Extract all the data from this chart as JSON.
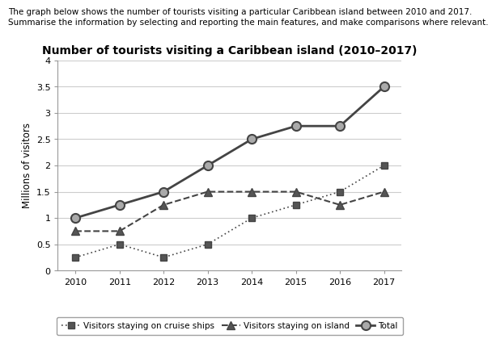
{
  "title": "Number of tourists visiting a Caribbean island (2010–2017)",
  "header_line1": "The graph below shows the number of tourists visiting a particular Caribbean island between 2010 and 2017.",
  "header_line2": "Summarise the information by selecting and reporting the main features, and make comparisons where relevant.",
  "ylabel": "Millions of visitors",
  "years": [
    2010,
    2011,
    2012,
    2013,
    2014,
    2015,
    2016,
    2017
  ],
  "cruise_ships": [
    0.25,
    0.5,
    0.25,
    0.5,
    1.0,
    1.25,
    1.5,
    2.0
  ],
  "on_island": [
    0.75,
    0.75,
    1.25,
    1.5,
    1.5,
    1.5,
    1.25,
    1.5
  ],
  "total": [
    1.0,
    1.25,
    1.5,
    2.0,
    2.5,
    2.75,
    2.75,
    3.5
  ],
  "ylim": [
    0,
    4
  ],
  "yticks": [
    0,
    0.5,
    1.0,
    1.5,
    2.0,
    2.5,
    3.0,
    3.5,
    4.0
  ],
  "ytick_labels": [
    "0",
    "0.5",
    "1",
    "1.5",
    "2",
    "2.5",
    "3",
    "3.5",
    "4"
  ],
  "grid_color": "#cccccc",
  "line_color": "#444444",
  "marker_fill_total": "#aaaaaa",
  "background_color": "#ffffff",
  "legend_cruise_label": "Visitors staying on cruise ships",
  "legend_island_label": "Visitors staying on island",
  "legend_total_label": "Total",
  "header_fontsize": 7.5,
  "title_fontsize": 10,
  "tick_fontsize": 8,
  "ylabel_fontsize": 8.5
}
